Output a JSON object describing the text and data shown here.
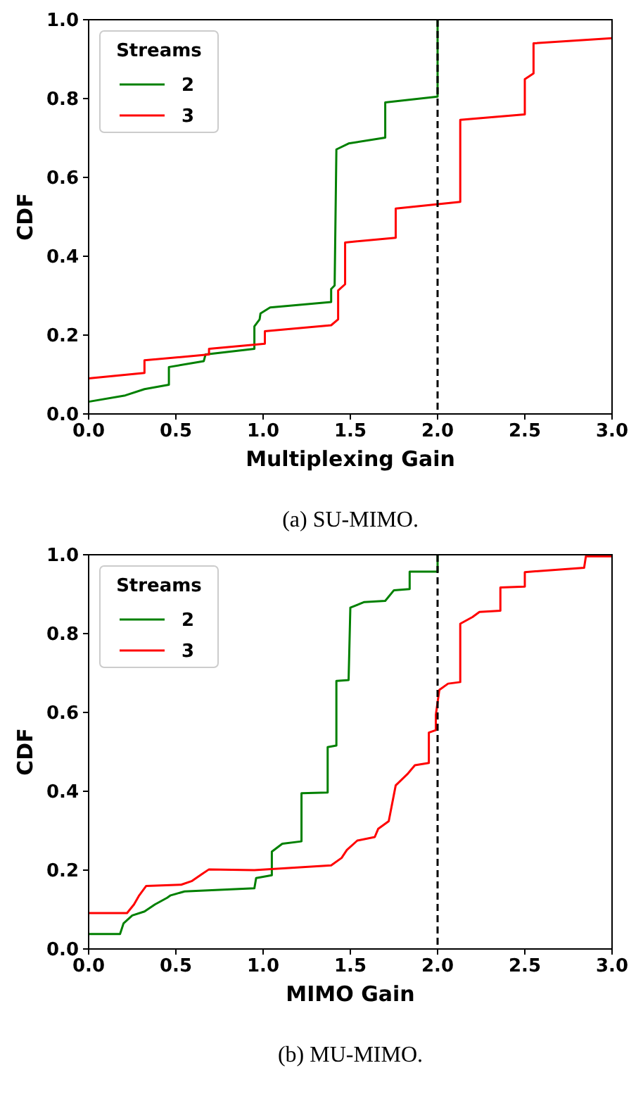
{
  "chart_data": [
    {
      "type": "line",
      "xlabel": "Multiplexing Gain",
      "ylabel": "CDF",
      "legend_title": "Streams",
      "legend": "top left",
      "grid": false,
      "line_style": "solid",
      "annotations": [
        "(a) SU-MIMO."
      ],
      "xlim": [
        0,
        3
      ],
      "xticks": [
        {
          "value": 0,
          "label": "0.0"
        },
        {
          "value": 0.5,
          "label": "0.5"
        },
        {
          "value": 1,
          "label": "1.0"
        },
        {
          "value": 1.5,
          "label": "1.5"
        },
        {
          "value": 2,
          "label": "2.0"
        },
        {
          "value": 2.5,
          "label": "2.5"
        },
        {
          "value": 3,
          "label": "3.0"
        }
      ],
      "ylim": [
        0,
        1
      ],
      "yticks": [
        {
          "value": 0,
          "label": "0.0"
        },
        {
          "value": 0.2,
          "label": "0.2"
        },
        {
          "value": 0.4,
          "label": "0.4"
        },
        {
          "value": 0.6,
          "label": "0.6"
        },
        {
          "value": 0.8,
          "label": "0.8"
        },
        {
          "value": 1,
          "label": "1.0"
        }
      ],
      "ref_lines": [
        {
          "axis": "x",
          "value": 2,
          "color": "#000000",
          "line_style": "dashed"
        }
      ],
      "series": [
        {
          "name": "2",
          "color": "#008000",
          "x": [
            0,
            0.21,
            0.32,
            0.46,
            0.46,
            0.66,
            0.67,
            0.95,
            0.95,
            0.98,
            0.985,
            1.04,
            1.39,
            1.39,
            1.41,
            1.42,
            1.49,
            1.7,
            1.7,
            2.0,
            2.0
          ],
          "values": [
            0.031,
            0.047,
            0.063,
            0.074,
            0.119,
            0.134,
            0.151,
            0.165,
            0.222,
            0.24,
            0.255,
            0.27,
            0.284,
            0.317,
            0.326,
            0.671,
            0.686,
            0.701,
            0.79,
            0.805,
            1.0
          ]
        },
        {
          "name": "3",
          "color": "#ff0000",
          "x": [
            0,
            0.32,
            0.32,
            0.69,
            0.69,
            1.01,
            1.01,
            1.39,
            1.43,
            1.43,
            1.47,
            1.47,
            1.76,
            1.76,
            2.13,
            2.13,
            2.5,
            2.5,
            2.55,
            2.55,
            3.0
          ],
          "values": [
            0.09,
            0.104,
            0.136,
            0.151,
            0.165,
            0.178,
            0.21,
            0.225,
            0.24,
            0.313,
            0.329,
            0.435,
            0.447,
            0.521,
            0.538,
            0.746,
            0.76,
            0.849,
            0.864,
            0.94,
            0.953
          ]
        }
      ]
    },
    {
      "type": "line",
      "xlabel": "MIMO Gain",
      "ylabel": "CDF",
      "legend_title": "Streams",
      "legend": "top left",
      "grid": false,
      "line_style": "solid",
      "annotations": [
        "(b) MU-MIMO."
      ],
      "xlim": [
        0,
        3
      ],
      "xticks": [
        {
          "value": 0,
          "label": "0.0"
        },
        {
          "value": 0.5,
          "label": "0.5"
        },
        {
          "value": 1,
          "label": "1.0"
        },
        {
          "value": 1.5,
          "label": "1.5"
        },
        {
          "value": 2,
          "label": "2.0"
        },
        {
          "value": 2.5,
          "label": "2.5"
        },
        {
          "value": 3,
          "label": "3.0"
        }
      ],
      "ylim": [
        0,
        1
      ],
      "yticks": [
        {
          "value": 0,
          "label": "0.0"
        },
        {
          "value": 0.2,
          "label": "0.2"
        },
        {
          "value": 0.4,
          "label": "0.4"
        },
        {
          "value": 0.6,
          "label": "0.6"
        },
        {
          "value": 0.8,
          "label": "0.8"
        },
        {
          "value": 1,
          "label": "1.0"
        }
      ],
      "ref_lines": [
        {
          "axis": "x",
          "value": 2,
          "color": "#000000",
          "line_style": "dashed"
        }
      ],
      "series": [
        {
          "name": "2",
          "color": "#008000",
          "x": [
            0,
            0.18,
            0.2,
            0.25,
            0.32,
            0.38,
            0.45,
            0.47,
            0.55,
            0.95,
            0.96,
            1.05,
            1.05,
            1.11,
            1.22,
            1.22,
            1.37,
            1.37,
            1.42,
            1.42,
            1.49,
            1.5,
            1.58,
            1.7,
            1.75,
            1.84,
            1.84,
            2.0,
            2.0
          ],
          "values": [
            0.038,
            0.038,
            0.065,
            0.085,
            0.095,
            0.113,
            0.13,
            0.136,
            0.146,
            0.154,
            0.18,
            0.187,
            0.247,
            0.267,
            0.273,
            0.395,
            0.397,
            0.512,
            0.516,
            0.68,
            0.682,
            0.866,
            0.88,
            0.883,
            0.91,
            0.913,
            0.957,
            0.957,
            1.0
          ]
        },
        {
          "name": "3",
          "color": "#ff0000",
          "x": [
            0,
            0.22,
            0.26,
            0.29,
            0.33,
            0.53,
            0.59,
            0.65,
            0.69,
            0.95,
            1.39,
            1.45,
            1.48,
            1.54,
            1.64,
            1.66,
            1.72,
            1.76,
            1.83,
            1.87,
            1.95,
            1.95,
            1.99,
            1.99,
            2.01,
            2.06,
            2.13,
            2.13,
            2.2,
            2.24,
            2.36,
            2.36,
            2.5,
            2.5,
            2.84,
            2.85,
            3.0
          ],
          "values": [
            0.091,
            0.091,
            0.113,
            0.136,
            0.16,
            0.163,
            0.172,
            0.19,
            0.202,
            0.2,
            0.212,
            0.231,
            0.251,
            0.275,
            0.284,
            0.305,
            0.324,
            0.415,
            0.445,
            0.466,
            0.472,
            0.549,
            0.555,
            0.594,
            0.657,
            0.673,
            0.677,
            0.825,
            0.842,
            0.855,
            0.858,
            0.917,
            0.919,
            0.956,
            0.967,
            0.996,
            0.996
          ]
        }
      ]
    }
  ]
}
